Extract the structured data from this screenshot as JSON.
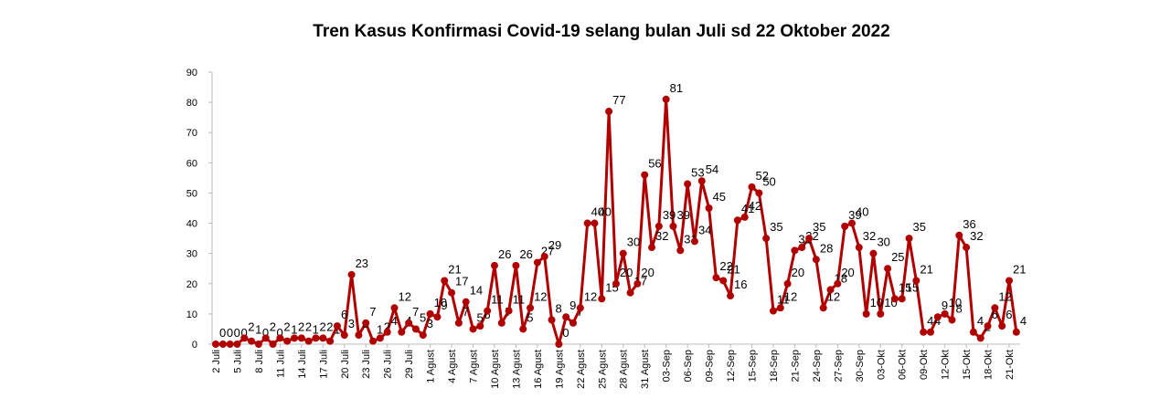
{
  "chart_data": {
    "type": "line",
    "title": "Tren Kasus Konfirmasi Covid-19 selang bulan Juli  sd  22 Oktober 2022",
    "color": "#b00000",
    "ylim": [
      0,
      90
    ],
    "yticks": [
      0,
      10,
      20,
      30,
      40,
      50,
      60,
      70,
      80,
      90
    ],
    "categories": [
      "2 Juli",
      null,
      null,
      "5 Juli",
      null,
      null,
      "8 Juli",
      null,
      null,
      "11 Juli",
      null,
      null,
      "14 Juli",
      null,
      null,
      "17 Juli",
      null,
      null,
      "20 Juli",
      null,
      null,
      "23 Juli",
      null,
      null,
      "26 Juli",
      null,
      null,
      "29 Juli",
      null,
      null,
      "1 Agust",
      null,
      null,
      "4 Agust",
      null,
      null,
      "7 Agust",
      null,
      null,
      "10 Agust",
      null,
      null,
      "13 Agust",
      null,
      null,
      "16 Agust",
      null,
      null,
      "19 Agust",
      null,
      null,
      "22 Agust",
      null,
      null,
      "25 Agust",
      null,
      null,
      "28 Agust",
      null,
      null,
      "31 Agust",
      null,
      null,
      "03-Sep",
      null,
      null,
      "06-Sep",
      null,
      null,
      "09-Sep",
      null,
      null,
      "12-Sep",
      null,
      null,
      "15-Sep",
      null,
      null,
      "18-Sep",
      null,
      null,
      "21-Sep",
      null,
      null,
      "24-Sep",
      null,
      null,
      "27-Sep",
      null,
      null,
      "30-Sep",
      null,
      null,
      "03-Okt",
      null,
      null,
      "06-Okt",
      null,
      null,
      "09-Okt",
      null,
      null,
      "12-Okt",
      null,
      null,
      "15-Okt",
      null,
      null,
      "18-Okt",
      null,
      null,
      "21-Okt",
      null
    ],
    "values": [
      0,
      0,
      0,
      0,
      2,
      1,
      0,
      2,
      0,
      2,
      1,
      2,
      2,
      1,
      2,
      2,
      1,
      6,
      3,
      23,
      3,
      7,
      1,
      2,
      4,
      12,
      4,
      7,
      5,
      3,
      10,
      9,
      21,
      17,
      7,
      14,
      5,
      6,
      11,
      26,
      7,
      11,
      26,
      5,
      12,
      27,
      29,
      8,
      0,
      9,
      7,
      12,
      40,
      40,
      15,
      77,
      20,
      30,
      17,
      20,
      56,
      32,
      39,
      81,
      39,
      31,
      53,
      34,
      54,
      45,
      22,
      21,
      16,
      41,
      42,
      52,
      50,
      35,
      11,
      12,
      20,
      31,
      32,
      35,
      28,
      12,
      18,
      20,
      39,
      40,
      32,
      10,
      30,
      10,
      25,
      15,
      15,
      35,
      21,
      4,
      4,
      9,
      10,
      8,
      36,
      32,
      4,
      2,
      6,
      12,
      6,
      21,
      4
    ]
  }
}
